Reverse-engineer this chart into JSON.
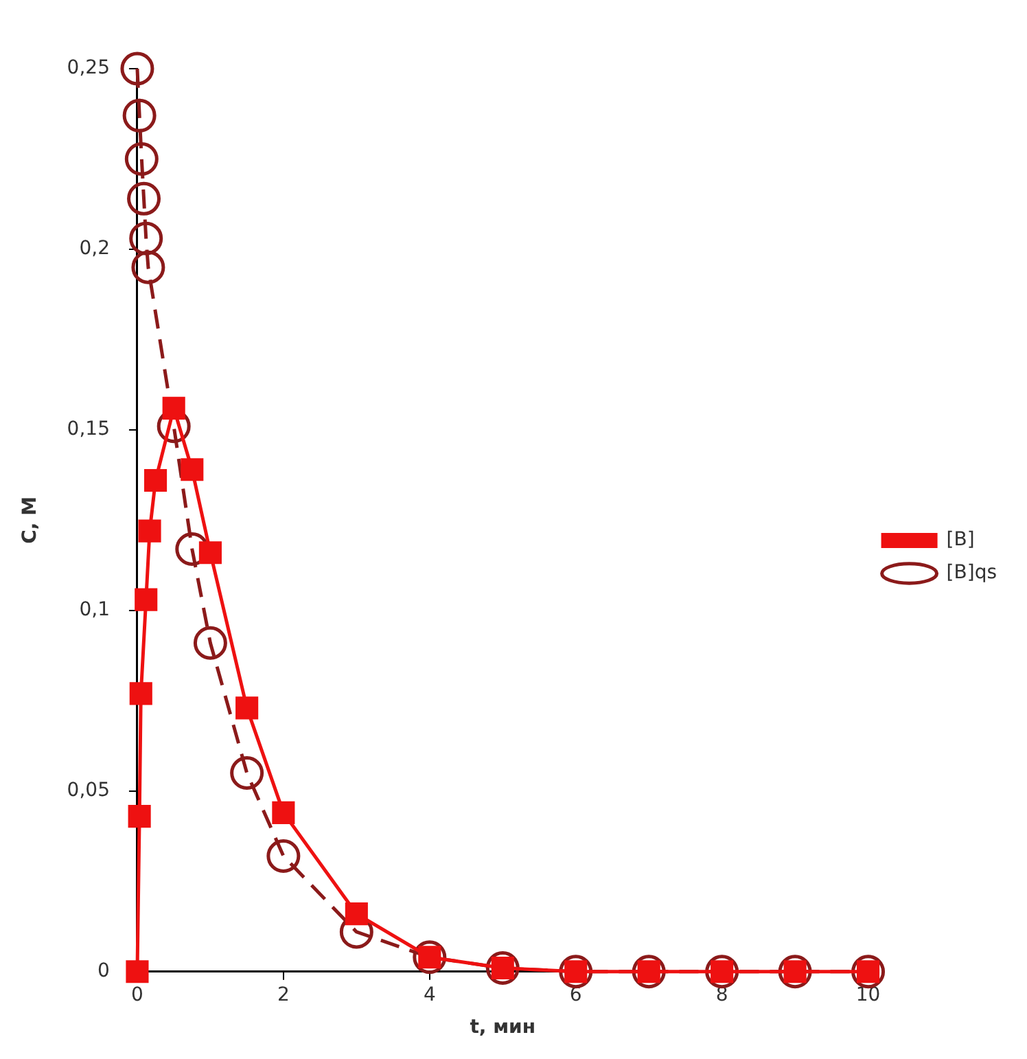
{
  "chart_data": {
    "type": "line",
    "xlabel": "t, мин",
    "ylabel": "C, M",
    "xlim": [
      0,
      10
    ],
    "xticks": [
      0,
      2,
      4,
      6,
      8,
      10
    ],
    "ylim": [
      0,
      0.25
    ],
    "yticks": [
      {
        "value": 0,
        "label": "0"
      },
      {
        "value": 0.05,
        "label": "0,05"
      },
      {
        "value": 0.1,
        "label": "0,1"
      },
      {
        "value": 0.15,
        "label": "0,15"
      },
      {
        "value": 0.2,
        "label": "0,2"
      },
      {
        "value": 0.25,
        "label": "0,25"
      }
    ],
    "grid": false,
    "legend": "right",
    "series": [
      {
        "name": "[B]",
        "color": "#ee1111",
        "marker": "square",
        "line_style": "solid",
        "x": [
          0,
          0.03,
          0.05,
          0.12,
          0.17,
          0.25,
          0.5,
          0.75,
          1,
          1.5,
          2,
          3,
          4,
          5,
          6,
          7,
          8,
          9,
          10
        ],
        "values": [
          0,
          0.043,
          0.077,
          0.103,
          0.122,
          0.136,
          0.156,
          0.139,
          0.116,
          0.073,
          0.044,
          0.016,
          0.004,
          0.001,
          0,
          0,
          0,
          0,
          0
        ]
      },
      {
        "name": "[B]qs",
        "color": "#8b1a1a",
        "marker": "circle",
        "line_style": "dashed",
        "x": [
          0,
          0.03,
          0.06,
          0.09,
          0.12,
          0.15,
          0.5,
          0.75,
          1,
          1.5,
          2,
          3,
          4,
          5,
          6,
          7,
          8,
          9,
          10
        ],
        "values": [
          0.25,
          0.237,
          0.225,
          0.214,
          0.203,
          0.195,
          0.151,
          0.117,
          0.091,
          0.055,
          0.032,
          0.011,
          0.004,
          0.001,
          0,
          0,
          0,
          0,
          0
        ]
      }
    ]
  }
}
